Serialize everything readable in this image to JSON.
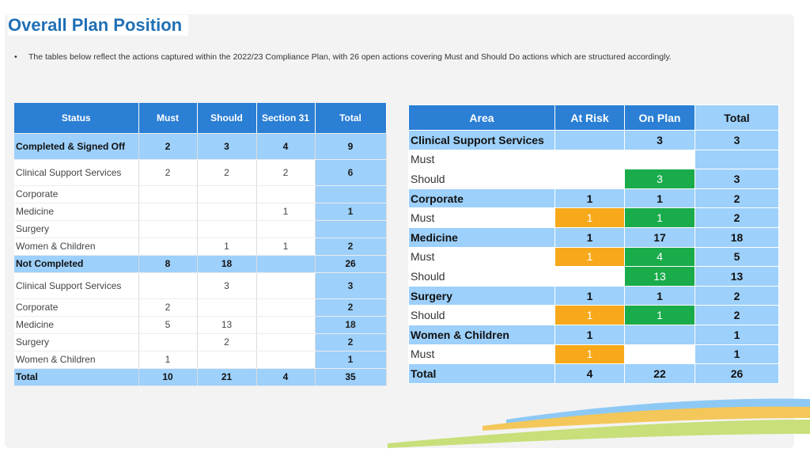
{
  "page": {
    "title": "Overall Plan Position",
    "bullet_marker": "•",
    "bullet_text": "The tables below reflect the actions captured within the 2022/23 Compliance Plan, with 26 open actions covering Must and Should Do actions which are structured accordingly."
  },
  "left_table": {
    "headers": [
      "Status",
      "Must",
      "Should",
      "Section 31",
      "Total"
    ],
    "rows": [
      {
        "label": "Completed & Signed Off",
        "must": "2",
        "should": "3",
        "s31": "4",
        "total": "9"
      },
      {
        "label": "Clinical Support Services",
        "must": "2",
        "should": "2",
        "s31": "2",
        "total": "6"
      },
      {
        "label": "Corporate",
        "must": "",
        "should": "",
        "s31": "",
        "total": ""
      },
      {
        "label": "Medicine",
        "must": "",
        "should": "",
        "s31": "1",
        "total": "1"
      },
      {
        "label": "Surgery",
        "must": "",
        "should": "",
        "s31": "",
        "total": ""
      },
      {
        "label": "Women & Children",
        "must": "",
        "should": "1",
        "s31": "1",
        "total": "2"
      },
      {
        "label": "Not Completed",
        "must": "8",
        "should": "18",
        "s31": "",
        "total": "26"
      },
      {
        "label": "Clinical Support Services",
        "must": "",
        "should": "3",
        "s31": "",
        "total": "3"
      },
      {
        "label": "Corporate",
        "must": "2",
        "should": "",
        "s31": "",
        "total": "2"
      },
      {
        "label": "Medicine",
        "must": "5",
        "should": "13",
        "s31": "",
        "total": "18"
      },
      {
        "label": "Surgery",
        "must": "",
        "should": "2",
        "s31": "",
        "total": "2"
      },
      {
        "label": "Women & Children",
        "must": "1",
        "should": "",
        "s31": "",
        "total": "1"
      },
      {
        "label": "Total",
        "must": "10",
        "should": "21",
        "s31": "4",
        "total": "35"
      }
    ]
  },
  "right_table": {
    "headers": [
      "Area",
      "At Risk",
      "On Plan",
      "Total"
    ],
    "rows": [
      {
        "label": "Clinical Support Services",
        "at_risk": "",
        "on_plan": "3",
        "total": "3"
      },
      {
        "label": "Must",
        "at_risk": "",
        "on_plan": "",
        "total": ""
      },
      {
        "label": "Should",
        "at_risk": "",
        "on_plan": "3",
        "total": "3"
      },
      {
        "label": "Corporate",
        "at_risk": "1",
        "on_plan": "1",
        "total": "2"
      },
      {
        "label": "Must",
        "at_risk": "1",
        "on_plan": "1",
        "total": "2"
      },
      {
        "label": "Medicine",
        "at_risk": "1",
        "on_plan": "17",
        "total": "18"
      },
      {
        "label": "Must",
        "at_risk": "1",
        "on_plan": "4",
        "total": "5"
      },
      {
        "label": "Should",
        "at_risk": "",
        "on_plan": "13",
        "total": "13"
      },
      {
        "label": "Surgery",
        "at_risk": "1",
        "on_plan": "1",
        "total": "2"
      },
      {
        "label": "Should",
        "at_risk": "1",
        "on_plan": "1",
        "total": "2"
      },
      {
        "label": "Women & Children",
        "at_risk": "1",
        "on_plan": "",
        "total": "1"
      },
      {
        "label": "Must",
        "at_risk": "1",
        "on_plan": "",
        "total": "1"
      },
      {
        "label": "Total",
        "at_risk": "4",
        "on_plan": "22",
        "total": "26"
      }
    ]
  },
  "colors": {
    "header_blue": "#2b7fd4",
    "light_blue": "#9dd0fb",
    "at_risk_amber": "#f7a81b",
    "on_plan_green": "#1aab4b",
    "title_blue": "#1f6fb5"
  }
}
